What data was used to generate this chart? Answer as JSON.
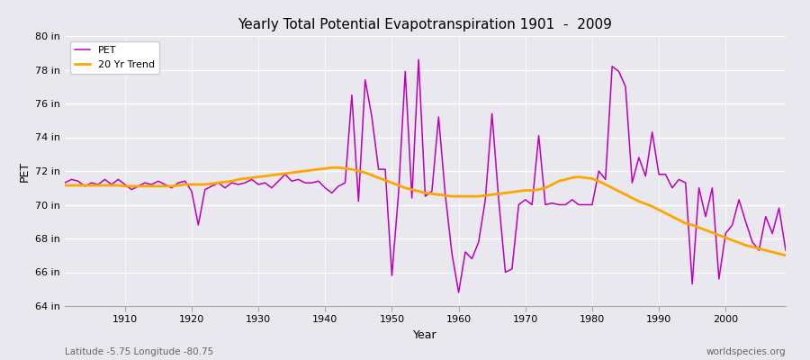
{
  "title": "Yearly Total Potential Evapotranspiration 1901  -  2009",
  "xlabel": "Year",
  "ylabel": "PET",
  "subtitle_left": "Latitude -5.75 Longitude -80.75",
  "subtitle_right": "worldspecies.org",
  "ylim": [
    64,
    80
  ],
  "ytick_labels": [
    "64 in",
    "66 in",
    "68 in",
    "70 in",
    "72 in",
    "74 in",
    "76 in",
    "78 in",
    "80 in"
  ],
  "ytick_values": [
    64,
    66,
    68,
    70,
    72,
    74,
    76,
    78,
    80
  ],
  "xlim": [
    1901,
    2009
  ],
  "xtick_values": [
    1910,
    1920,
    1930,
    1940,
    1950,
    1960,
    1970,
    1980,
    1990,
    2000
  ],
  "pet_color": "#BB00BB",
  "trend_color": "#FFA500",
  "bg_color": "#E8E8EE",
  "plot_bg_color": "#E4E4EC",
  "legend_bg": "#FFFFFF",
  "pet_linewidth": 1.1,
  "trend_linewidth": 2.0,
  "years": [
    1901,
    1902,
    1903,
    1904,
    1905,
    1906,
    1907,
    1908,
    1909,
    1910,
    1911,
    1912,
    1913,
    1914,
    1915,
    1916,
    1917,
    1918,
    1919,
    1920,
    1921,
    1922,
    1923,
    1924,
    1925,
    1926,
    1927,
    1928,
    1929,
    1930,
    1931,
    1932,
    1933,
    1934,
    1935,
    1936,
    1937,
    1938,
    1939,
    1940,
    1941,
    1942,
    1943,
    1944,
    1945,
    1946,
    1947,
    1948,
    1949,
    1950,
    1951,
    1952,
    1953,
    1954,
    1955,
    1956,
    1957,
    1958,
    1959,
    1960,
    1961,
    1962,
    1963,
    1964,
    1965,
    1966,
    1967,
    1968,
    1969,
    1970,
    1971,
    1972,
    1973,
    1974,
    1975,
    1976,
    1977,
    1978,
    1979,
    1980,
    1981,
    1982,
    1983,
    1984,
    1985,
    1986,
    1987,
    1988,
    1989,
    1990,
    1991,
    1992,
    1993,
    1994,
    1995,
    1996,
    1997,
    1998,
    1999,
    2000,
    2001,
    2002,
    2003,
    2004,
    2005,
    2006,
    2007,
    2008,
    2009
  ],
  "pet_values": [
    71.3,
    71.5,
    71.4,
    71.1,
    71.3,
    71.2,
    71.5,
    71.2,
    71.5,
    71.2,
    70.9,
    71.1,
    71.3,
    71.2,
    71.4,
    71.2,
    71.0,
    71.3,
    71.4,
    70.8,
    68.8,
    70.9,
    71.1,
    71.3,
    71.0,
    71.3,
    71.2,
    71.3,
    71.5,
    71.2,
    71.3,
    71.0,
    71.4,
    71.8,
    71.4,
    71.5,
    71.3,
    71.3,
    71.4,
    71.0,
    70.7,
    71.1,
    71.3,
    76.5,
    70.2,
    77.4,
    75.2,
    72.1,
    72.1,
    65.8,
    70.7,
    77.9,
    70.4,
    78.6,
    70.5,
    70.8,
    75.2,
    70.6,
    67.1,
    64.8,
    67.2,
    66.8,
    67.8,
    70.3,
    75.4,
    70.3,
    66.0,
    66.2,
    70.0,
    70.3,
    70.0,
    74.1,
    70.0,
    70.1,
    70.0,
    70.0,
    70.3,
    70.0,
    70.0,
    70.0,
    72.0,
    71.5,
    78.2,
    77.9,
    77.0,
    71.3,
    72.8,
    71.7,
    74.3,
    71.8,
    71.8,
    71.0,
    71.5,
    71.3,
    65.3,
    71.0,
    69.3,
    71.0,
    65.6,
    68.3,
    68.8,
    70.3,
    69.0,
    67.8,
    67.3,
    69.3,
    68.3,
    69.8,
    67.3
  ],
  "trend_values_years": [
    1901,
    1902,
    1903,
    1904,
    1905,
    1906,
    1907,
    1908,
    1909,
    1910,
    1911,
    1912,
    1913,
    1914,
    1915,
    1916,
    1917,
    1918,
    1919,
    1920,
    1921,
    1922,
    1923,
    1924,
    1925,
    1926,
    1927,
    1928,
    1929,
    1930,
    1931,
    1932,
    1933,
    1934,
    1935,
    1936,
    1937,
    1938,
    1939,
    1940,
    1941,
    1942,
    1943,
    1944,
    1945,
    1946,
    1947,
    1948,
    1949,
    1950,
    1951,
    1952,
    1953,
    1954,
    1955,
    1956,
    1957,
    1958,
    1959,
    1960,
    1961,
    1962,
    1963,
    1964,
    1965,
    1966,
    1967,
    1968,
    1969,
    1970,
    1971,
    1972,
    1973,
    1974,
    1975,
    1976,
    1977,
    1978,
    1979,
    1980,
    1981,
    1982,
    1983,
    1984,
    1985,
    1986,
    1987,
    1988,
    1989,
    1990,
    1991,
    1992,
    1993,
    1994,
    1995,
    1996,
    1997,
    1998,
    1999,
    2000,
    2001,
    2002,
    2003,
    2004,
    2005,
    2006,
    2007,
    2008,
    2009
  ],
  "trend_values": [
    71.15,
    71.15,
    71.15,
    71.15,
    71.15,
    71.15,
    71.15,
    71.15,
    71.15,
    71.1,
    71.1,
    71.1,
    71.1,
    71.1,
    71.1,
    71.1,
    71.1,
    71.15,
    71.2,
    71.2,
    71.2,
    71.2,
    71.25,
    71.3,
    71.35,
    71.4,
    71.5,
    71.55,
    71.6,
    71.65,
    71.7,
    71.75,
    71.8,
    71.85,
    71.9,
    71.95,
    72.0,
    72.05,
    72.1,
    72.15,
    72.2,
    72.2,
    72.15,
    72.1,
    72.0,
    71.9,
    71.75,
    71.6,
    71.45,
    71.3,
    71.15,
    71.0,
    70.9,
    70.8,
    70.7,
    70.65,
    70.6,
    70.55,
    70.5,
    70.5,
    70.5,
    70.5,
    70.5,
    70.55,
    70.6,
    70.65,
    70.7,
    70.75,
    70.8,
    70.85,
    70.85,
    70.9,
    71.0,
    71.2,
    71.4,
    71.5,
    71.6,
    71.65,
    71.6,
    71.55,
    71.4,
    71.2,
    71.0,
    70.8,
    70.6,
    70.4,
    70.2,
    70.05,
    69.9,
    69.7,
    69.5,
    69.3,
    69.1,
    68.9,
    68.8,
    68.65,
    68.5,
    68.35,
    68.2,
    68.05,
    67.9,
    67.75,
    67.6,
    67.5,
    67.4,
    67.3,
    67.2,
    67.1,
    67.0
  ]
}
